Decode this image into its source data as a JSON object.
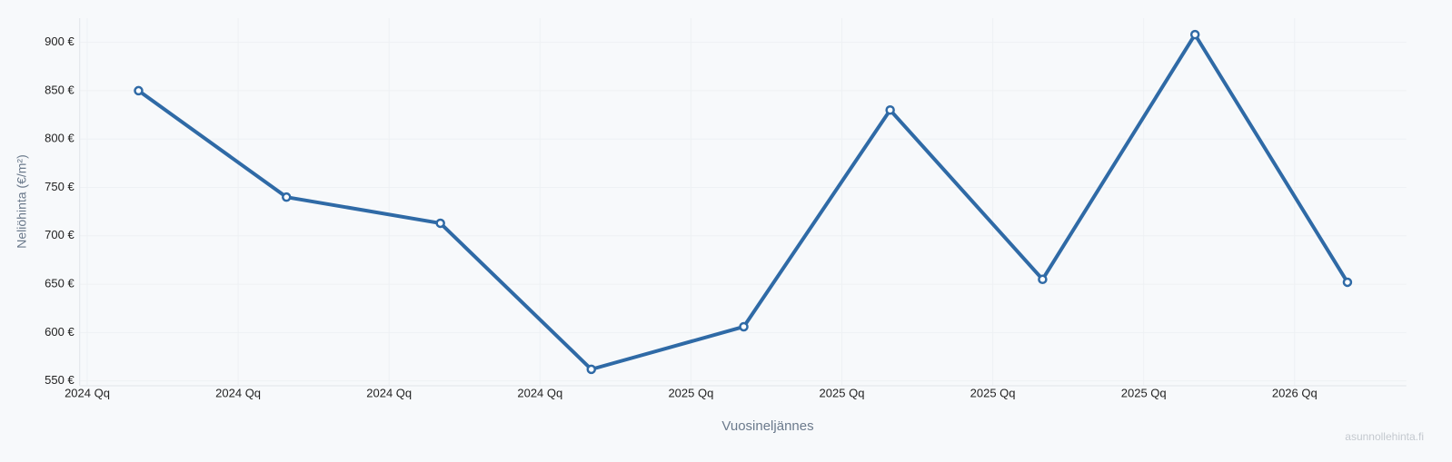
{
  "chart_data": {
    "type": "line",
    "x_label": "Vuosineljännes",
    "y_label": "Neliöhinta (€/m²)",
    "watermark": "asunnollehinta.fi",
    "x": [
      0.34,
      1.32,
      2.34,
      3.34,
      4.35,
      5.32,
      6.33,
      7.34,
      8.35
    ],
    "series": [
      {
        "color": "#2f6aa6",
        "values": [
          850,
          740,
          713,
          562,
          606,
          830,
          655,
          908,
          652
        ]
      }
    ],
    "xlim": [
      -0.05,
      8.74
    ],
    "xticks": [
      {
        "value": 0,
        "label": "2024 Qq"
      },
      {
        "value": 1,
        "label": "2024 Qq"
      },
      {
        "value": 2,
        "label": "2024 Qq"
      },
      {
        "value": 3,
        "label": "2024 Qq"
      },
      {
        "value": 4,
        "label": "2025 Qq"
      },
      {
        "value": 5,
        "label": "2025 Qq"
      },
      {
        "value": 6,
        "label": "2025 Qq"
      },
      {
        "value": 7,
        "label": "2025 Qq"
      },
      {
        "value": 8,
        "label": "2026 Qq"
      }
    ],
    "ylim": [
      545,
      925
    ],
    "yticks": [
      {
        "value": 550,
        "label": "550 €"
      },
      {
        "value": 600,
        "label": "600 €"
      },
      {
        "value": 650,
        "label": "650 €"
      },
      {
        "value": 700,
        "label": "700 €"
      },
      {
        "value": 750,
        "label": "750 €"
      },
      {
        "value": 800,
        "label": "800 €"
      },
      {
        "value": 850,
        "label": "850 €"
      },
      {
        "value": 900,
        "label": "900 €"
      }
    ],
    "grid": true
  }
}
